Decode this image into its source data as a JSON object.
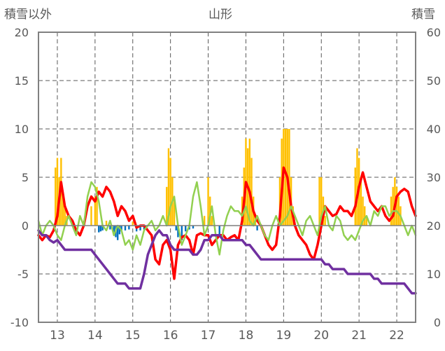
{
  "chart_data": {
    "type": "bar+line",
    "title": "山形",
    "ylabel_left": "積雪以外",
    "ylabel_right": "積雪",
    "ylim_left": [
      -10,
      20
    ],
    "ylim_right": [
      0,
      60
    ],
    "yticks_left": [
      "20",
      "15",
      "10",
      "5",
      "0",
      "-5",
      "-10"
    ],
    "yticks_right": [
      "60",
      "50",
      "40",
      "30",
      "20",
      "10",
      "0"
    ],
    "xlim": [
      12.5,
      22.5
    ],
    "xticks": [
      "13",
      "14",
      "15",
      "16",
      "17",
      "18",
      "19",
      "20",
      "21",
      "22"
    ],
    "grid": "dashed",
    "colors": {
      "bar_positive": "#FFC000",
      "bar_negative": "#0070C0",
      "red_line": "#FF0000",
      "green_line": "#92D050",
      "purple_line": "#7030A0",
      "axis": "#808080",
      "grid": "#595959"
    },
    "bars": {
      "x": [
        12.95,
        13.0,
        13.05,
        13.1,
        13.15,
        13.2,
        13.25,
        13.9,
        14.0,
        14.05,
        14.1,
        14.15,
        14.2,
        14.3,
        14.4,
        14.5,
        14.55,
        14.6,
        14.65,
        14.7,
        14.8,
        14.9,
        15.0,
        15.1,
        15.2,
        15.3,
        15.9,
        15.95,
        16.0,
        16.05,
        16.1,
        16.15,
        16.2,
        16.3,
        16.4,
        16.5,
        16.6,
        16.9,
        17.0,
        17.05,
        17.1,
        17.3,
        17.9,
        17.95,
        18.0,
        18.05,
        18.1,
        18.15,
        18.2,
        18.25,
        18.3,
        18.9,
        18.95,
        19.0,
        19.05,
        19.1,
        19.15,
        19.2,
        19.25,
        19.95,
        20.0,
        20.05,
        20.1,
        20.9,
        20.95,
        21.0,
        21.05,
        21.1,
        21.15,
        21.2,
        21.85,
        21.9,
        21.95,
        22.0,
        22.05,
        22.1
      ],
      "values": [
        6,
        7,
        5,
        7,
        3,
        2,
        1,
        2,
        3,
        4,
        -0.7,
        -0.6,
        -0.5,
        0.5,
        -0.4,
        -0.8,
        -1.2,
        -1.5,
        -0.9,
        -0.6,
        -0.5,
        -0.4,
        0.4,
        -0.6,
        -0.5,
        -0.4,
        4,
        8,
        7,
        5,
        3,
        -0.5,
        -1.2,
        -1.5,
        -0.6,
        -0.4,
        -0.3,
        1,
        5,
        3,
        1,
        -1,
        3,
        6,
        9,
        8,
        9,
        7,
        3,
        1,
        -0.5,
        5,
        9,
        10,
        10,
        10,
        10,
        5,
        2,
        5,
        5,
        3,
        1,
        6,
        8,
        7,
        5,
        3,
        2,
        1,
        3,
        4,
        5,
        4,
        3,
        2
      ]
    },
    "series": [
      {
        "color": "#FF0000",
        "axis": "left",
        "x": [
          12.5,
          12.6,
          12.7,
          12.8,
          12.9,
          13.0,
          13.1,
          13.2,
          13.3,
          13.4,
          13.5,
          13.6,
          13.7,
          13.8,
          13.9,
          14.0,
          14.1,
          14.2,
          14.3,
          14.4,
          14.5,
          14.6,
          14.7,
          14.8,
          14.9,
          15.0,
          15.1,
          15.2,
          15.3,
          15.4,
          15.5,
          15.6,
          15.7,
          15.8,
          15.9,
          16.0,
          16.1,
          16.2,
          16.3,
          16.4,
          16.5,
          16.6,
          16.7,
          16.8,
          16.9,
          17.0,
          17.1,
          17.2,
          17.3,
          17.4,
          17.5,
          17.6,
          17.7,
          17.8,
          17.9,
          18.0,
          18.1,
          18.2,
          18.3,
          18.4,
          18.5,
          18.6,
          18.7,
          18.8,
          18.9,
          19.0,
          19.1,
          19.2,
          19.3,
          19.4,
          19.5,
          19.6,
          19.7,
          19.8,
          19.9,
          20.0,
          20.1,
          20.2,
          20.3,
          20.4,
          20.5,
          20.6,
          20.7,
          20.8,
          20.9,
          21.0,
          21.1,
          21.2,
          21.3,
          21.4,
          21.5,
          21.6,
          21.7,
          21.8,
          21.9,
          22.0,
          22.1,
          22.2,
          22.3,
          22.4,
          22.5
        ],
        "values": [
          -1,
          -1.5,
          -1,
          -1.2,
          -0.5,
          1,
          4.5,
          2,
          1,
          0.5,
          -0.5,
          -1,
          0,
          2,
          3,
          2.5,
          3.5,
          3,
          4,
          3.5,
          2.5,
          1,
          2,
          1.5,
          0.5,
          1,
          -0.2,
          0,
          0,
          -0.5,
          -1,
          -3.5,
          -4,
          -2,
          -1.5,
          -2.5,
          -5.5,
          -2,
          -1.2,
          -1,
          -1.5,
          -3,
          -1,
          -0.8,
          -1,
          -1,
          -2,
          -1.5,
          -1,
          -1,
          -1.5,
          -1.2,
          -1,
          -1.5,
          0.5,
          4.5,
          3.5,
          1.5,
          0.5,
          0,
          -1,
          -2,
          -2.5,
          -2,
          1,
          6,
          5,
          2,
          0,
          -1,
          -1.5,
          -2,
          -3,
          -3.5,
          -2,
          0,
          2,
          1.5,
          1,
          1.2,
          2,
          1.5,
          1.5,
          1,
          2,
          4,
          5.5,
          4,
          2.5,
          2,
          1.5,
          2,
          1,
          0.5,
          1,
          3,
          3.5,
          3.8,
          3.5,
          2,
          1
        ]
      },
      {
        "color": "#92D050",
        "axis": "left",
        "x": [
          12.5,
          12.6,
          12.7,
          12.8,
          12.9,
          13.0,
          13.1,
          13.2,
          13.3,
          13.4,
          13.5,
          13.6,
          13.7,
          13.8,
          13.9,
          14.0,
          14.1,
          14.2,
          14.3,
          14.4,
          14.5,
          14.6,
          14.7,
          14.8,
          14.9,
          15.0,
          15.1,
          15.2,
          15.3,
          15.4,
          15.5,
          15.6,
          15.7,
          15.8,
          15.9,
          16.0,
          16.1,
          16.2,
          16.3,
          16.4,
          16.5,
          16.6,
          16.7,
          16.8,
          16.9,
          17.0,
          17.1,
          17.2,
          17.3,
          17.4,
          17.5,
          17.6,
          17.7,
          17.8,
          17.9,
          18.0,
          18.1,
          18.2,
          18.3,
          18.4,
          18.5,
          18.6,
          18.7,
          18.8,
          18.9,
          19.0,
          19.1,
          19.2,
          19.3,
          19.4,
          19.5,
          19.6,
          19.7,
          19.8,
          19.9,
          20.0,
          20.1,
          20.2,
          20.3,
          20.4,
          20.5,
          20.6,
          20.7,
          20.8,
          20.9,
          21.0,
          21.1,
          21.2,
          21.3,
          21.4,
          21.5,
          21.6,
          21.7,
          21.8,
          21.9,
          22.0,
          22.1,
          22.2,
          22.3,
          22.4,
          22.5
        ],
        "values": [
          0.5,
          -1,
          0,
          0.5,
          0,
          -1,
          -1.5,
          0,
          1,
          0,
          -1,
          1,
          0,
          3,
          4.5,
          4,
          2.5,
          0,
          -0.5,
          0.5,
          -1,
          0,
          -0.5,
          -2,
          -1.5,
          -2.5,
          -1,
          -2,
          -0.5,
          0,
          0.5,
          -0.5,
          0,
          1,
          0,
          2,
          3,
          0,
          -2,
          -1,
          0,
          3,
          4.5,
          2,
          -1,
          0,
          2,
          -1,
          -3,
          -0.5,
          1,
          2,
          1.5,
          1.5,
          1,
          2,
          0.5,
          0,
          1,
          0,
          -1,
          -1.5,
          0,
          1,
          0,
          0.5,
          1,
          2,
          1,
          0,
          -1,
          0.5,
          1,
          0,
          -1,
          1,
          2,
          0,
          -0.5,
          1,
          0.5,
          -1,
          -1.5,
          -1,
          -1.5,
          -0.5,
          0.5,
          1,
          0,
          1.5,
          1,
          2,
          2,
          1,
          1.5,
          1.5,
          1,
          0,
          -1,
          0,
          -1
        ]
      },
      {
        "color": "#7030A0",
        "axis": "right",
        "x": [
          12.5,
          12.6,
          12.7,
          12.8,
          12.9,
          13.0,
          13.1,
          13.2,
          13.3,
          13.4,
          13.5,
          13.6,
          13.7,
          13.8,
          13.9,
          14.0,
          14.1,
          14.2,
          14.3,
          14.4,
          14.5,
          14.6,
          14.7,
          14.8,
          14.9,
          15.0,
          15.1,
          15.2,
          15.3,
          15.4,
          15.5,
          15.6,
          15.7,
          15.8,
          15.9,
          16.0,
          16.1,
          16.2,
          16.3,
          16.4,
          16.5,
          16.6,
          16.7,
          16.8,
          16.9,
          17.0,
          17.1,
          17.2,
          17.3,
          17.4,
          17.5,
          17.6,
          17.7,
          17.8,
          17.9,
          18.0,
          18.1,
          18.2,
          18.3,
          18.4,
          18.5,
          18.6,
          18.7,
          18.8,
          18.9,
          19.0,
          19.1,
          19.2,
          19.3,
          19.4,
          19.5,
          19.6,
          19.7,
          19.8,
          19.9,
          20.0,
          20.1,
          20.2,
          20.3,
          20.4,
          20.5,
          20.6,
          20.7,
          20.8,
          20.9,
          21.0,
          21.1,
          21.2,
          21.3,
          21.4,
          21.5,
          21.6,
          21.7,
          21.8,
          21.9,
          22.0,
          22.1,
          22.2,
          22.3,
          22.4,
          22.5
        ],
        "values": [
          19,
          18,
          18,
          17,
          16.5,
          17,
          16,
          15,
          15,
          15,
          15,
          15,
          15,
          15,
          15,
          14,
          13,
          12,
          11,
          10,
          9,
          8,
          8,
          8,
          7,
          7,
          7,
          7,
          10,
          14,
          16,
          18,
          19,
          18,
          18,
          16,
          15,
          15,
          15,
          15,
          15,
          14,
          14,
          15,
          17,
          17,
          18,
          18,
          18,
          17,
          17,
          17,
          17,
          17,
          17,
          16,
          16,
          15,
          14,
          13,
          13,
          13,
          13,
          13,
          13,
          13,
          13,
          13,
          13,
          13,
          13,
          13,
          13,
          13,
          13,
          13,
          12,
          12,
          11,
          11,
          11,
          11,
          10,
          10,
          10,
          10,
          10,
          10,
          10,
          9,
          9,
          8,
          8,
          8,
          8,
          8,
          8,
          8,
          7,
          6,
          6
        ]
      }
    ]
  }
}
